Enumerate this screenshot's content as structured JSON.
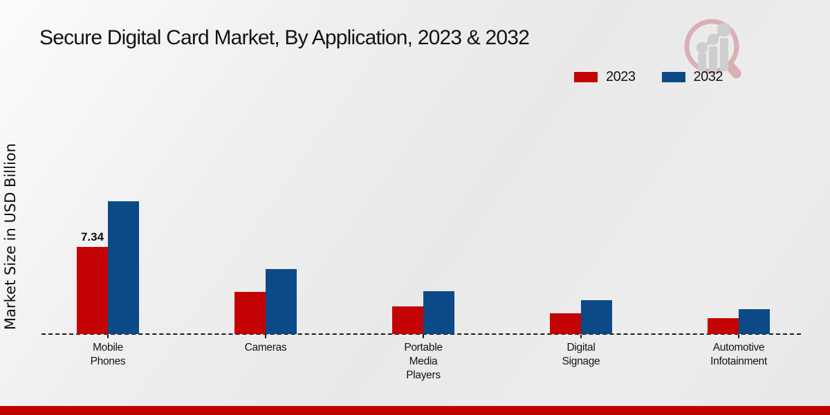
{
  "title": "Secure Digital Card Market, By Application, 2023 & 2032",
  "ylabel": "Market Size in USD Billion",
  "legend": [
    {
      "label": "2023",
      "color": "#c40404"
    },
    {
      "label": "2032",
      "color": "#0c4a87"
    }
  ],
  "logo": {
    "name": "magnifier-bar-chart-logo",
    "ring_color": "#d8a3a8",
    "bar_color": "#c9c9cb"
  },
  "colors": {
    "accent_red": "#c40404",
    "accent_blue": "#0c4a87",
    "bottom_strip": "#c00000",
    "baseline": "#1a1a1a"
  },
  "chart_data": {
    "type": "bar",
    "title": "Secure Digital Card Market, By Application, 2023 & 2032",
    "ylabel": "Market Size in USD Billion",
    "categories": [
      "Mobile Phones",
      "Cameras",
      "Portable Media Players",
      "Digital Signage",
      "Automotive Infotainment"
    ],
    "series": [
      {
        "name": "2023",
        "color": "#c40404",
        "values": [
          7.34,
          3.55,
          2.33,
          1.75,
          1.34
        ]
      },
      {
        "name": "2032",
        "color": "#0c4a87",
        "values": [
          11.2,
          5.5,
          3.6,
          2.85,
          2.1
        ]
      }
    ],
    "data_labels": [
      {
        "category_index": 0,
        "series_index": 0,
        "text": "7.34"
      }
    ],
    "ylim": [
      0,
      12
    ],
    "grid": false,
    "legend_position": "top-right",
    "baseline_style": "dashed"
  }
}
